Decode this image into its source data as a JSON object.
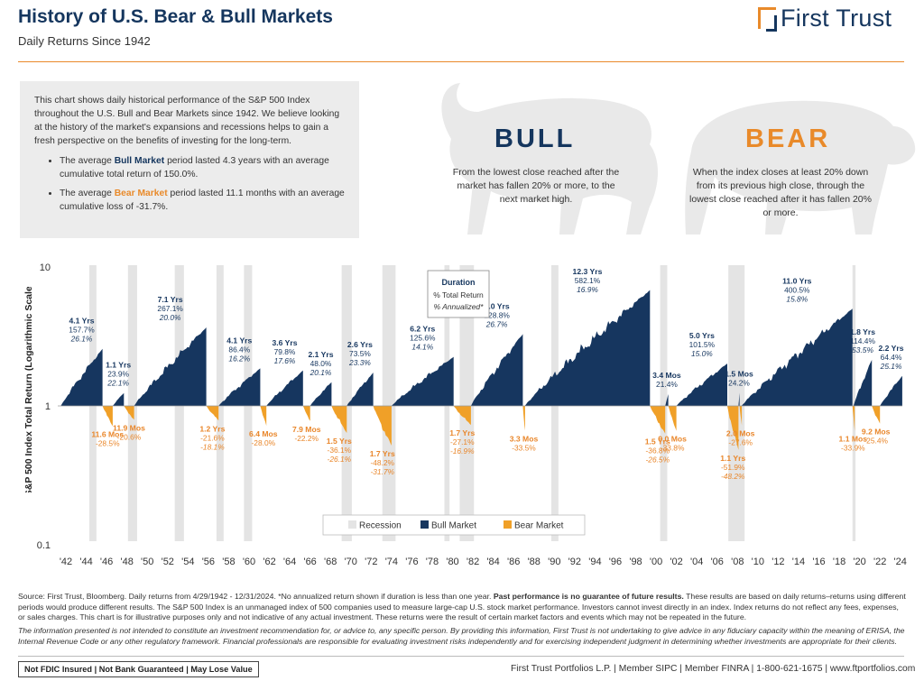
{
  "header": {
    "title": "History of U.S. Bear & Bull Markets",
    "subtitle": "Daily Returns Since 1942",
    "brand": "First Trust",
    "brand_mark_icon": "first-trust-logo-icon"
  },
  "intro": {
    "paragraph": "This chart shows daily historical performance of the S&P 500 Index throughout the U.S. Bull and Bear Markets since 1942. We believe looking at the history of the market's expansions and recessions helps to gain a fresh perspective on the benefits of investing for the long-term.",
    "bull_prefix": "The average ",
    "bull_term": "Bull Market",
    "bull_suffix": " period lasted 4.3 years with an average cumulative total return of 150.0%.",
    "bear_prefix": "The average ",
    "bear_term": "Bear Market",
    "bear_suffix": " period lasted 11.1 months with an average cumulative loss of -31.7%."
  },
  "definitions": {
    "bull_heading": "BULL",
    "bull_text": "From the lowest close reached after the market has fallen 20% or more, to the next market high.",
    "bear_heading": "BEAR",
    "bear_text": "When the index closes at least 20% down from its previous high close, through the lowest close reached after it has fallen 20% or more."
  },
  "colors": {
    "bull": "#16365f",
    "bear": "#f0a028",
    "recession": "#e4e4e4",
    "title": "#15365e",
    "accent": "#e98a2a"
  },
  "chart_data": {
    "type": "area",
    "ylabel": "S&P 500 Index Total Return (Logarithmic Scale)",
    "y_scale": "log",
    "ylim": [
      0.1,
      10
    ],
    "y_ticks": [
      "10",
      "1",
      "0.1"
    ],
    "x_range": [
      1942,
      2025
    ],
    "x_ticks": [
      "'42",
      "'44",
      "'46",
      "'48",
      "'50",
      "'52",
      "'54",
      "'56",
      "'58",
      "'60",
      "'62",
      "'64",
      "'66",
      "'68",
      "'70",
      "'72",
      "'74",
      "'76",
      "'78",
      "'80",
      "'82",
      "'84",
      "'86",
      "'88",
      "'90",
      "'92",
      "'94",
      "'96",
      "'98",
      "'00",
      "'02",
      "'04",
      "'06",
      "'08",
      "'10",
      "'12",
      "'14",
      "'16",
      "'18",
      "'20",
      "'22",
      "'24"
    ],
    "grid": false,
    "legend_position": "bottom-center",
    "legend": [
      {
        "label": "Recession",
        "kind": "recession"
      },
      {
        "label": "Bull Market",
        "kind": "bull"
      },
      {
        "label": "Bear Market",
        "kind": "bear"
      }
    ],
    "key_box": {
      "title": "Duration",
      "line1": "% Total Return",
      "line2": "% Annualized*"
    },
    "recessions": [
      [
        1945.1,
        1945.8
      ],
      [
        1948.9,
        1949.8
      ],
      [
        1953.5,
        1954.4
      ],
      [
        1957.6,
        1958.3
      ],
      [
        1960.3,
        1961.1
      ],
      [
        1969.9,
        1970.9
      ],
      [
        1973.9,
        1975.2
      ],
      [
        1980.0,
        1980.5
      ],
      [
        1981.5,
        1982.9
      ],
      [
        1990.5,
        1991.2
      ],
      [
        2001.2,
        2001.9
      ],
      [
        2007.9,
        2009.5
      ],
      [
        2020.1,
        2020.4
      ]
    ],
    "bull_markets": [
      {
        "start": 1942.3,
        "end": 1946.4,
        "duration": "4.1 Yrs",
        "total": "157.7%",
        "annualized": "26.1%",
        "return": 1.577
      },
      {
        "start": 1947.4,
        "end": 1948.5,
        "duration": "1.1 Yrs",
        "total": "23.9%",
        "annualized": "22.1%",
        "return": 0.239
      },
      {
        "start": 1949.5,
        "end": 1956.6,
        "duration": "7.1 Yrs",
        "total": "267.1%",
        "annualized": "20.0%",
        "return": 2.671
      },
      {
        "start": 1957.8,
        "end": 1961.9,
        "duration": "4.1 Yrs",
        "total": "86.4%",
        "annualized": "16.2%",
        "return": 0.864
      },
      {
        "start": 1962.5,
        "end": 1966.1,
        "duration": "3.6 Yrs",
        "total": "79.8%",
        "annualized": "17.6%",
        "return": 0.798
      },
      {
        "start": 1966.8,
        "end": 1968.9,
        "duration": "2.1 Yrs",
        "total": "48.0%",
        "annualized": "20.1%",
        "return": 0.48
      },
      {
        "start": 1970.4,
        "end": 1973.0,
        "duration": "2.6 Yrs",
        "total": "73.5%",
        "annualized": "23.3%",
        "return": 0.735
      },
      {
        "start": 1974.8,
        "end": 1980.9,
        "duration": "6.2 Yrs",
        "total": "125.6%",
        "annualized": "14.1%",
        "return": 1.256
      },
      {
        "start": 1982.6,
        "end": 1987.7,
        "duration": "5.0 Yrs",
        "total": "228.8%",
        "annualized": "26.7%",
        "return": 2.288
      },
      {
        "start": 1987.9,
        "end": 2000.2,
        "duration": "12.3 Yrs",
        "total": "582.1%",
        "annualized": "16.9%",
        "return": 5.821
      },
      {
        "start": 2001.7,
        "end": 2002.0,
        "duration": "3.4 Mos",
        "total": "21.4%",
        "annualized": "",
        "return": 0.214
      },
      {
        "start": 2002.8,
        "end": 2007.8,
        "duration": "5.0 Yrs",
        "total": "101.5%",
        "annualized": "15.0%",
        "return": 1.015
      },
      {
        "start": 2008.9,
        "end": 2009.0,
        "duration": "1.5 Mos",
        "total": "24.2%",
        "annualized": "",
        "return": 0.242
      },
      {
        "start": 2009.2,
        "end": 2020.1,
        "duration": "11.0 Yrs",
        "total": "400.5%",
        "annualized": "15.8%",
        "return": 4.005
      },
      {
        "start": 2020.2,
        "end": 2022.0,
        "duration": "1.8 Yrs",
        "total": "114.4%",
        "annualized": "53.5%",
        "return": 1.144
      },
      {
        "start": 2022.8,
        "end": 2024.99,
        "duration": "2.2 Yrs",
        "total": "64.4%",
        "annualized": "25.1%",
        "return": 0.644
      }
    ],
    "bear_markets": [
      {
        "start": 1946.4,
        "end": 1947.4,
        "duration": "11.6 Mos",
        "total": "-28.5%",
        "annualized": "",
        "return": -0.285
      },
      {
        "start": 1948.5,
        "end": 1949.5,
        "duration": "11.9 Mos",
        "total": "-20.6%",
        "annualized": "",
        "return": -0.206
      },
      {
        "start": 1956.6,
        "end": 1957.8,
        "duration": "1.2 Yrs",
        "total": "-21.6%",
        "annualized": "-18.1%",
        "return": -0.216
      },
      {
        "start": 1961.9,
        "end": 1962.5,
        "duration": "6.4 Mos",
        "total": "-28.0%",
        "annualized": "",
        "return": -0.28
      },
      {
        "start": 1966.1,
        "end": 1966.8,
        "duration": "7.9 Mos",
        "total": "-22.2%",
        "annualized": "",
        "return": -0.222
      },
      {
        "start": 1968.9,
        "end": 1970.4,
        "duration": "1.5 Yrs",
        "total": "-36.1%",
        "annualized": "-26.1%",
        "return": -0.361
      },
      {
        "start": 1973.0,
        "end": 1974.8,
        "duration": "1.7 Yrs",
        "total": "-48.2%",
        "annualized": "-31.7%",
        "return": -0.482
      },
      {
        "start": 1980.9,
        "end": 1982.6,
        "duration": "1.7 Yrs",
        "total": "-27.1%",
        "annualized": "-16.9%",
        "return": -0.271
      },
      {
        "start": 1987.7,
        "end": 1987.9,
        "duration": "3.3 Mos",
        "total": "-33.5%",
        "annualized": "",
        "return": -0.335
      },
      {
        "start": 2000.2,
        "end": 2001.7,
        "duration": "1.5 Yrs",
        "total": "-36.8%",
        "annualized": "-26.5%",
        "return": -0.368
      },
      {
        "start": 2002.0,
        "end": 2002.8,
        "duration": "9.0 Mos",
        "total": "-33.8%",
        "annualized": "",
        "return": -0.338
      },
      {
        "start": 2007.8,
        "end": 2008.9,
        "duration": "1.1 Yrs",
        "total": "-51.9%",
        "annualized": "-48.2%",
        "return": -0.519
      },
      {
        "start": 2009.0,
        "end": 2009.2,
        "duration": "2.0 Mos",
        "total": "-27.6%",
        "annualized": "",
        "return": -0.276
      },
      {
        "start": 2020.1,
        "end": 2020.2,
        "duration": "1.1 Mos",
        "total": "-33.9%",
        "annualized": "",
        "return": -0.339
      },
      {
        "start": 2022.0,
        "end": 2022.8,
        "duration": "9.2 Mos",
        "total": "-25.4%",
        "annualized": "",
        "return": -0.254
      }
    ]
  },
  "footer": {
    "source_a": "Source: First Trust, Bloomberg. Daily returns from 4/29/1942 - 12/31/2024. *No annualized return shown if duration is less than one year. ",
    "source_b": "Past performance is no guarantee of future results.",
    "source_c": " These results are based on daily returns–returns using different periods would produce different results. The S&P 500 Index is an unmanaged index of 500 companies used to measure large-cap U.S. stock market performance. Investors cannot invest directly in an index. Index returns do not reflect any fees, expenses, or sales charges. This chart is for illustrative purposes only and not indicative of any actual investment. These returns were the result of certain market factors and events which may not be repeated in the future.",
    "disclaimer": "The information presented is not intended to constitute an investment recommendation for, or advice to, any specific person. By providing this information, First Trust is not undertaking to give advice in any fiduciary capacity within the meaning of ERISA, the Internal Revenue Code or any other regulatory framework. Financial professionals are responsible for evaluating investment risks independently and for exercising independent judgment in determining whether investments are appropriate for their clients.",
    "fdic": "Not FDIC Insured | Not Bank Guaranteed | May Lose Value",
    "contact": "First Trust Portfolios L.P. | Member SIPC | Member FINRA | 1-800-621-1675 | www.ftportfolios.com"
  }
}
